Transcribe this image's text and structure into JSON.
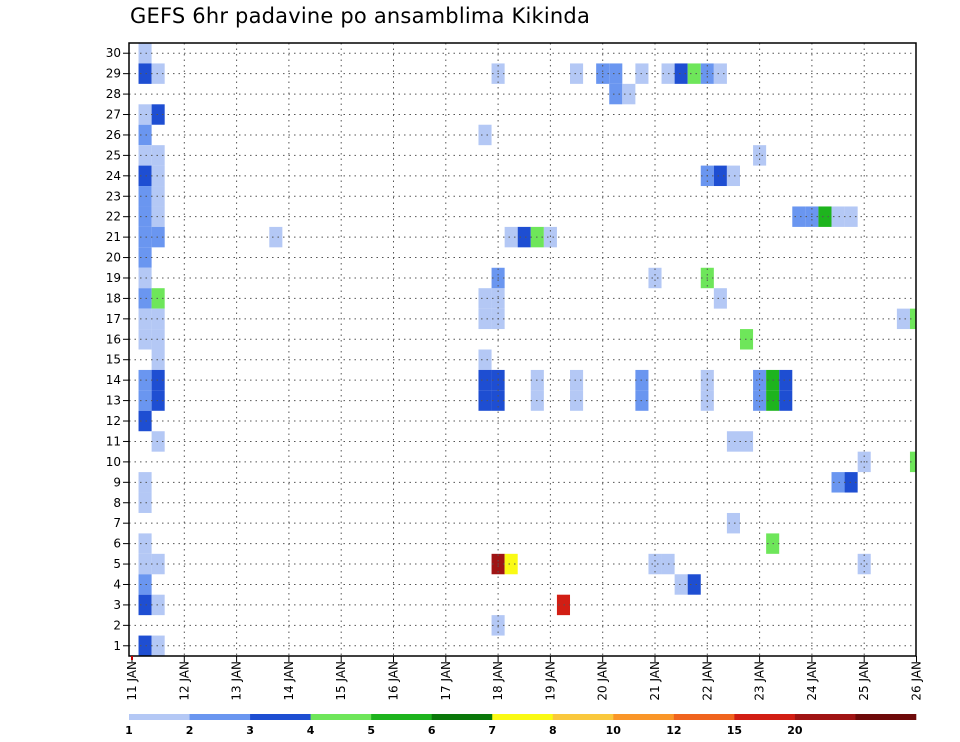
{
  "title": "GEFS 6hr padavine po ansamblima Kikinda",
  "chart_data": {
    "type": "heatmap",
    "title": "GEFS 6hr padavine po ansamblima Kikinda",
    "xlabel": "",
    "ylabel": "",
    "x_tick_labels": [
      "11 JAN",
      "12 JAN",
      "13 JAN",
      "14 JAN",
      "15 JAN",
      "16 JAN",
      "17 JAN",
      "18 JAN",
      "19 JAN",
      "20 JAN",
      "21 JAN",
      "22 JAN",
      "23 JAN",
      "24 JAN",
      "25 JAN",
      "26 JAN"
    ],
    "x_unit": "day (11 JAN = 0), 6-hourly steps",
    "xlim": [
      0,
      15
    ],
    "y_tick_labels": [
      "1",
      "2",
      "3",
      "4",
      "5",
      "6",
      "7",
      "8",
      "9",
      "10",
      "11",
      "12",
      "13",
      "14",
      "15",
      "16",
      "17",
      "18",
      "19",
      "20",
      "21",
      "22",
      "23",
      "24",
      "25",
      "26",
      "27",
      "28",
      "29",
      "30"
    ],
    "ylim": [
      0.5,
      30.5
    ],
    "grid": "dotted",
    "colorbar": {
      "labels": [
        "1",
        "2",
        "3",
        "4",
        "5",
        "6",
        "7",
        "8",
        "10",
        "12",
        "15",
        "20"
      ],
      "colors": [
        "#b4c8f5",
        "#6a96f0",
        "#1e4ed2",
        "#6ee65a",
        "#1eb41e",
        "#0a780a",
        "#fafa14",
        "#fac83c",
        "#fa9628",
        "#f0641e",
        "#d21e14",
        "#a01414",
        "#6e0a0a"
      ]
    },
    "cells": [
      {
        "x": 0.25,
        "y": 30,
        "c": 1
      },
      {
        "x": 0.25,
        "y": 29,
        "c": 3
      },
      {
        "x": 0.5,
        "y": 29,
        "c": 1
      },
      {
        "x": 0.25,
        "y": 27,
        "c": 1
      },
      {
        "x": 0.5,
        "y": 27,
        "c": 3
      },
      {
        "x": 0.25,
        "y": 26,
        "c": 2
      },
      {
        "x": 0.25,
        "y": 25,
        "c": 1
      },
      {
        "x": 0.5,
        "y": 25,
        "c": 1
      },
      {
        "x": 0.25,
        "y": 24,
        "c": 3
      },
      {
        "x": 0.5,
        "y": 24,
        "c": 1
      },
      {
        "x": 0.25,
        "y": 23,
        "c": 2
      },
      {
        "x": 0.5,
        "y": 23,
        "c": 1
      },
      {
        "x": 0.25,
        "y": 22,
        "c": 2
      },
      {
        "x": 0.5,
        "y": 22,
        "c": 1
      },
      {
        "x": 0.25,
        "y": 21,
        "c": 2
      },
      {
        "x": 0.5,
        "y": 21,
        "c": 2
      },
      {
        "x": 0.25,
        "y": 20,
        "c": 2
      },
      {
        "x": 0.25,
        "y": 19,
        "c": 1
      },
      {
        "x": 0.25,
        "y": 18,
        "c": 2
      },
      {
        "x": 0.5,
        "y": 18,
        "c": 4
      },
      {
        "x": 0.25,
        "y": 17,
        "c": 1
      },
      {
        "x": 0.5,
        "y": 17,
        "c": 1
      },
      {
        "x": 0.25,
        "y": 16,
        "c": 1
      },
      {
        "x": 0.5,
        "y": 16,
        "c": 1
      },
      {
        "x": 0.5,
        "y": 15,
        "c": 1
      },
      {
        "x": 0.25,
        "y": 14,
        "c": 2
      },
      {
        "x": 0.5,
        "y": 14,
        "c": 3
      },
      {
        "x": 0.25,
        "y": 13,
        "c": 2
      },
      {
        "x": 0.5,
        "y": 13,
        "c": 3
      },
      {
        "x": 0.25,
        "y": 12,
        "c": 3
      },
      {
        "x": 0.5,
        "y": 11,
        "c": 1
      },
      {
        "x": 0.25,
        "y": 9,
        "c": 1
      },
      {
        "x": 0.25,
        "y": 8,
        "c": 1
      },
      {
        "x": 0.25,
        "y": 6,
        "c": 1
      },
      {
        "x": 0.25,
        "y": 5,
        "c": 1
      },
      {
        "x": 0.5,
        "y": 5,
        "c": 1
      },
      {
        "x": 0.25,
        "y": 4,
        "c": 2
      },
      {
        "x": 0.25,
        "y": 3,
        "c": 3
      },
      {
        "x": 0.5,
        "y": 3,
        "c": 1
      },
      {
        "x": 0.25,
        "y": 1,
        "c": 3
      },
      {
        "x": 0.5,
        "y": 1,
        "c": 1
      },
      {
        "x": 2.75,
        "y": 21,
        "c": 1
      },
      {
        "x": 6.75,
        "y": 26,
        "c": 1
      },
      {
        "x": 7.0,
        "y": 29,
        "c": 1
      },
      {
        "x": 7.0,
        "y": 2,
        "c": 1
      },
      {
        "x": 6.75,
        "y": 18,
        "c": 1
      },
      {
        "x": 7.0,
        "y": 18,
        "c": 1
      },
      {
        "x": 7.0,
        "y": 19,
        "c": 2
      },
      {
        "x": 6.75,
        "y": 17,
        "c": 1
      },
      {
        "x": 7.0,
        "y": 17,
        "c": 1
      },
      {
        "x": 6.75,
        "y": 15,
        "c": 1
      },
      {
        "x": 6.75,
        "y": 14,
        "c": 3
      },
      {
        "x": 7.0,
        "y": 14,
        "c": 3
      },
      {
        "x": 6.75,
        "y": 13,
        "c": 3
      },
      {
        "x": 7.0,
        "y": 13,
        "c": 3
      },
      {
        "x": 7.25,
        "y": 21,
        "c": 1
      },
      {
        "x": 7.5,
        "y": 21,
        "c": 3
      },
      {
        "x": 7.75,
        "y": 21,
        "c": 4
      },
      {
        "x": 8.0,
        "y": 21,
        "c": 1
      },
      {
        "x": 7.0,
        "y": 5,
        "c": 12
      },
      {
        "x": 7.25,
        "y": 5,
        "c": 7
      },
      {
        "x": 7.75,
        "y": 14,
        "c": 1
      },
      {
        "x": 7.75,
        "y": 13,
        "c": 1
      },
      {
        "x": 8.25,
        "y": 3,
        "c": 11
      },
      {
        "x": 8.5,
        "y": 29,
        "c": 1
      },
      {
        "x": 8.5,
        "y": 14,
        "c": 1
      },
      {
        "x": 8.5,
        "y": 13,
        "c": 1
      },
      {
        "x": 9.0,
        "y": 29,
        "c": 2
      },
      {
        "x": 9.25,
        "y": 29,
        "c": 2
      },
      {
        "x": 9.25,
        "y": 28,
        "c": 2
      },
      {
        "x": 9.5,
        "y": 28,
        "c": 1
      },
      {
        "x": 9.75,
        "y": 29,
        "c": 1
      },
      {
        "x": 9.75,
        "y": 14,
        "c": 2
      },
      {
        "x": 9.75,
        "y": 13,
        "c": 2
      },
      {
        "x": 10.0,
        "y": 19,
        "c": 1
      },
      {
        "x": 10.0,
        "y": 5,
        "c": 1
      },
      {
        "x": 10.25,
        "y": 5,
        "c": 1
      },
      {
        "x": 10.25,
        "y": 29,
        "c": 1
      },
      {
        "x": 10.5,
        "y": 29,
        "c": 3
      },
      {
        "x": 10.75,
        "y": 29,
        "c": 4
      },
      {
        "x": 11.0,
        "y": 29,
        "c": 2
      },
      {
        "x": 11.25,
        "y": 29,
        "c": 1
      },
      {
        "x": 10.5,
        "y": 4,
        "c": 1
      },
      {
        "x": 10.75,
        "y": 4,
        "c": 3
      },
      {
        "x": 11.0,
        "y": 24,
        "c": 2
      },
      {
        "x": 11.25,
        "y": 24,
        "c": 3
      },
      {
        "x": 11.5,
        "y": 24,
        "c": 1
      },
      {
        "x": 11.0,
        "y": 19,
        "c": 4
      },
      {
        "x": 11.25,
        "y": 18,
        "c": 1
      },
      {
        "x": 11.0,
        "y": 14,
        "c": 1
      },
      {
        "x": 11.0,
        "y": 13,
        "c": 1
      },
      {
        "x": 11.5,
        "y": 11,
        "c": 1
      },
      {
        "x": 11.75,
        "y": 11,
        "c": 1
      },
      {
        "x": 11.5,
        "y": 7,
        "c": 1
      },
      {
        "x": 11.75,
        "y": 16,
        "c": 4
      },
      {
        "x": 12.0,
        "y": 25,
        "c": 1
      },
      {
        "x": 12.0,
        "y": 14,
        "c": 2
      },
      {
        "x": 12.0,
        "y": 13,
        "c": 2
      },
      {
        "x": 12.25,
        "y": 14,
        "c": 5
      },
      {
        "x": 12.25,
        "y": 13,
        "c": 5
      },
      {
        "x": 12.5,
        "y": 14,
        "c": 3
      },
      {
        "x": 12.5,
        "y": 13,
        "c": 3
      },
      {
        "x": 12.25,
        "y": 6,
        "c": 4
      },
      {
        "x": 12.75,
        "y": 22,
        "c": 2
      },
      {
        "x": 13.0,
        "y": 22,
        "c": 2
      },
      {
        "x": 13.25,
        "y": 22,
        "c": 5
      },
      {
        "x": 13.5,
        "y": 22,
        "c": 1
      },
      {
        "x": 13.75,
        "y": 22,
        "c": 1
      },
      {
        "x": 13.5,
        "y": 9,
        "c": 2
      },
      {
        "x": 13.75,
        "y": 9,
        "c": 3
      },
      {
        "x": 14.0,
        "y": 10,
        "c": 1
      },
      {
        "x": 14.0,
        "y": 5,
        "c": 1
      },
      {
        "x": 14.75,
        "y": 17,
        "c": 1
      },
      {
        "x": 15.0,
        "y": 17,
        "c": 4
      },
      {
        "x": 15.0,
        "y": 10,
        "c": 4
      }
    ]
  }
}
